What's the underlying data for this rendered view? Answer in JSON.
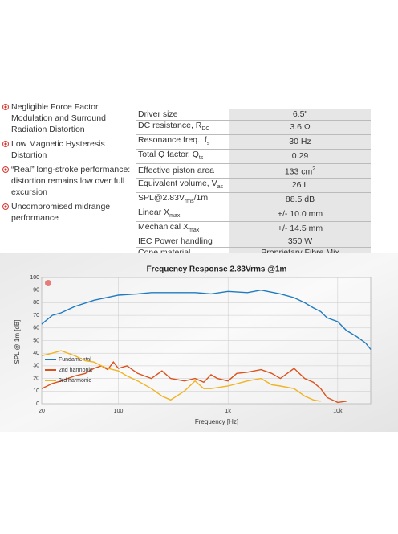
{
  "bullets": [
    "Negligible Force Factor Modulation and Surround Radiation Distortion",
    "Low Magnetic Hysteresis Distortion",
    "“Real” long-stroke performance: distortion remains low over full excursion",
    "Uncompromised midrange performance"
  ],
  "table": {
    "rows": [
      [
        [
          "Driver size"
        ],
        [
          "6.5\""
        ]
      ],
      [
        [
          "DC resistance, R",
          {
            "sub": "DC"
          }
        ],
        [
          "3.6 Ω"
        ]
      ],
      [
        [
          "Resonance freq., f",
          {
            "sub": "s"
          }
        ],
        [
          "30 Hz"
        ]
      ],
      [
        [
          "Total Q factor, Q",
          {
            "sub": "ts"
          }
        ],
        [
          "0.29"
        ]
      ],
      [
        [
          "Effective piston area"
        ],
        [
          "133 cm",
          {
            "sup": "2"
          }
        ]
      ],
      [
        [
          "Equivalent volume, V",
          {
            "sub": "as"
          }
        ],
        [
          "26 L"
        ]
      ],
      [
        [
          "SPL@2.83V",
          {
            "sub": "rms"
          },
          "/1m"
        ],
        [
          "88.5 dB"
        ]
      ],
      [
        [
          "Linear X",
          {
            "sub": "max"
          }
        ],
        [
          "+/- 10.0 mm"
        ]
      ],
      [
        [
          "Mechanical X",
          {
            "sub": "max"
          }
        ],
        [
          "+/- 14.5 mm"
        ]
      ],
      [
        [
          "IEC Power handling"
        ],
        [
          "350 W"
        ]
      ],
      [
        [
          "Cone material"
        ],
        [
          "Proprietary Fibre Mix"
        ]
      ]
    ]
  },
  "chart_data": {
    "type": "line",
    "title": "Frequency Response 2.83Vrms @1m",
    "x_label": "Frequency [Hz]",
    "y_label": "SPL @ 1m [dB]",
    "xlim": [
      20,
      20000
    ],
    "ylim": [
      0,
      100
    ],
    "log_x": true,
    "grid": true,
    "xticks": [
      20,
      100,
      {
        "value": 1000,
        "label": "1k"
      },
      {
        "value": 10000,
        "label": "10k"
      }
    ],
    "yticks": [
      0,
      10,
      20,
      30,
      40,
      50,
      60,
      70,
      80,
      90,
      100
    ],
    "series": [
      {
        "name": "Fundamental",
        "color": "#1f7bbf",
        "x": [
          20,
          25,
          30,
          40,
          60,
          100,
          150,
          200,
          300,
          500,
          700,
          1000,
          1500,
          2000,
          3000,
          4000,
          5000,
          6000,
          7000,
          8000,
          10000,
          12000,
          15000,
          18000,
          20000
        ],
        "values": [
          63,
          70,
          72,
          77,
          82,
          86,
          87,
          88,
          88,
          88,
          87,
          89,
          88,
          90,
          87,
          84,
          80,
          76,
          73,
          68,
          65,
          58,
          53,
          48,
          43
        ]
      },
      {
        "name": "2nd harmonic",
        "color": "#d9531e",
        "x": [
          20,
          25,
          30,
          40,
          50,
          60,
          70,
          80,
          90,
          100,
          120,
          150,
          200,
          250,
          300,
          400,
          500,
          600,
          700,
          800,
          1000,
          1200,
          1500,
          2000,
          2500,
          3000,
          4000,
          5000,
          6000,
          7000,
          8000,
          10000,
          12000
        ],
        "values": [
          12,
          16,
          18,
          22,
          24,
          28,
          30,
          27,
          33,
          28,
          30,
          24,
          20,
          26,
          20,
          18,
          20,
          17,
          23,
          20,
          18,
          24,
          25,
          27,
          24,
          20,
          28,
          20,
          17,
          12,
          5,
          1,
          2
        ]
      },
      {
        "name": "3rd harmonic",
        "color": "#f0b323",
        "x": [
          20,
          25,
          30,
          40,
          50,
          60,
          70,
          80,
          100,
          120,
          150,
          200,
          250,
          300,
          400,
          500,
          600,
          700,
          1000,
          1500,
          2000,
          2500,
          3000,
          4000,
          5000,
          6000,
          7000
        ],
        "values": [
          38,
          40,
          42,
          38,
          34,
          33,
          30,
          28,
          26,
          22,
          18,
          12,
          6,
          3,
          10,
          18,
          12,
          12,
          14,
          18,
          20,
          15,
          14,
          12,
          6,
          3,
          2
        ]
      }
    ]
  }
}
